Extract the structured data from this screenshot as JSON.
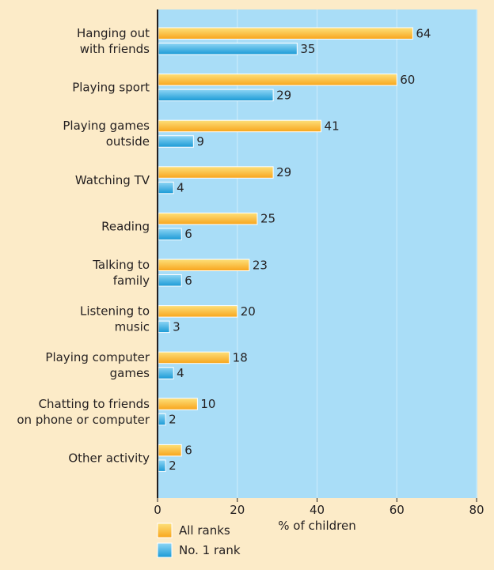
{
  "chart_data": {
    "type": "bar",
    "orientation": "horizontal",
    "categories": [
      [
        "Hanging out",
        "with friends"
      ],
      [
        "Playing sport"
      ],
      [
        "Playing games",
        "outside"
      ],
      [
        "Watching TV"
      ],
      [
        "Reading"
      ],
      [
        "Talking to",
        "family"
      ],
      [
        "Listening to",
        "music"
      ],
      [
        "Playing computer",
        "games"
      ],
      [
        "Chatting to friends",
        "on phone or computer"
      ],
      [
        "Other activity"
      ]
    ],
    "series": [
      {
        "name": "All ranks",
        "values": [
          64,
          60,
          41,
          29,
          25,
          23,
          20,
          18,
          10,
          6
        ]
      },
      {
        "name": "No. 1 rank",
        "values": [
          35,
          29,
          9,
          4,
          6,
          6,
          3,
          4,
          2,
          2
        ]
      }
    ],
    "xlabel": "% of children",
    "xlim": [
      0,
      80
    ],
    "xticks": [
      0,
      20,
      40,
      60,
      80
    ],
    "grid": true,
    "legend_position": "bottom-left",
    "colors": {
      "page_background": "#fcebc8",
      "plot_background": "#a9ddf7",
      "grid": "#c8eafb",
      "all_ranks": "#f8a51c",
      "all_ranks_light": "#fde07a",
      "no1_rank": "#1a9ad6",
      "no1_rank_light": "#8fd6f5",
      "axis": "#231f20"
    }
  }
}
